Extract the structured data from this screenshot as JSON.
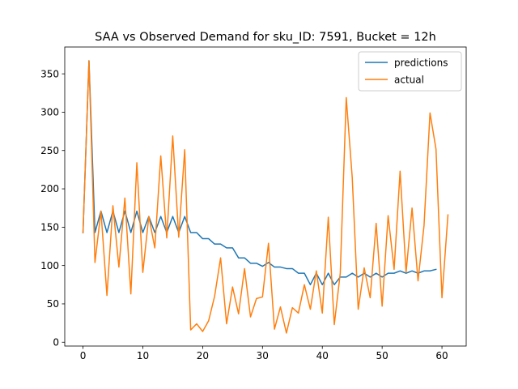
{
  "chart_data": {
    "type": "line",
    "title": "SAA vs Observed Demand for sku_ID: 7591, Bucket = 12h",
    "xlabel": "",
    "ylabel": "",
    "xlim": [
      -3.05,
      64.05
    ],
    "ylim": [
      -5,
      385
    ],
    "x_ticks": [
      0,
      10,
      20,
      30,
      40,
      50,
      60
    ],
    "y_ticks": [
      0,
      50,
      100,
      150,
      200,
      250,
      300,
      350
    ],
    "grid": false,
    "legend_position": "top-right",
    "series": [
      {
        "name": "predictions",
        "color": "#1f77b4",
        "x": [
          0,
          1,
          2,
          3,
          4,
          5,
          6,
          7,
          8,
          9,
          10,
          11,
          12,
          13,
          14,
          15,
          16,
          17,
          18,
          19,
          20,
          21,
          22,
          23,
          24,
          25,
          26,
          27,
          28,
          29,
          30,
          31,
          32,
          33,
          34,
          35,
          36,
          37,
          38,
          39,
          40,
          41,
          42,
          43,
          44,
          45,
          46,
          47,
          48,
          49,
          50,
          51,
          52,
          53,
          54,
          55,
          56,
          57,
          58,
          59
        ],
        "values": [
          143,
          367,
          143,
          171,
          143,
          171,
          143,
          171,
          143,
          171,
          143,
          164,
          143,
          164,
          143,
          164,
          143,
          164,
          143,
          143,
          135,
          135,
          128,
          128,
          123,
          123,
          110,
          110,
          103,
          103,
          99,
          104,
          98,
          98,
          96,
          96,
          90,
          90,
          75,
          90,
          75,
          90,
          75,
          85,
          85,
          90,
          85,
          90,
          85,
          90,
          85,
          90,
          90,
          93,
          90,
          93,
          90,
          93,
          93,
          95
        ]
      },
      {
        "name": "actual",
        "color": "#ff7f0e",
        "x": [
          0,
          1,
          2,
          3,
          4,
          5,
          6,
          7,
          8,
          9,
          10,
          11,
          12,
          13,
          14,
          15,
          16,
          17,
          18,
          19,
          20,
          21,
          22,
          23,
          24,
          25,
          26,
          27,
          28,
          29,
          30,
          31,
          32,
          33,
          34,
          35,
          36,
          37,
          38,
          39,
          40,
          41,
          42,
          43,
          44,
          45,
          46,
          47,
          48,
          49,
          50,
          51,
          52,
          53,
          54,
          55,
          56,
          57,
          58,
          59,
          60,
          61
        ],
        "values": [
          143,
          367,
          104,
          171,
          61,
          178,
          98,
          188,
          63,
          234,
          91,
          164,
          123,
          243,
          136,
          269,
          137,
          251,
          16,
          24,
          14,
          28,
          60,
          110,
          24,
          72,
          37,
          96,
          33,
          57,
          59,
          129,
          17,
          46,
          12,
          45,
          38,
          75,
          43,
          93,
          38,
          163,
          23,
          90,
          319,
          215,
          43,
          97,
          58,
          155,
          47,
          165,
          95,
          223,
          91,
          175,
          80,
          152,
          299,
          252,
          58,
          166
        ]
      }
    ]
  }
}
